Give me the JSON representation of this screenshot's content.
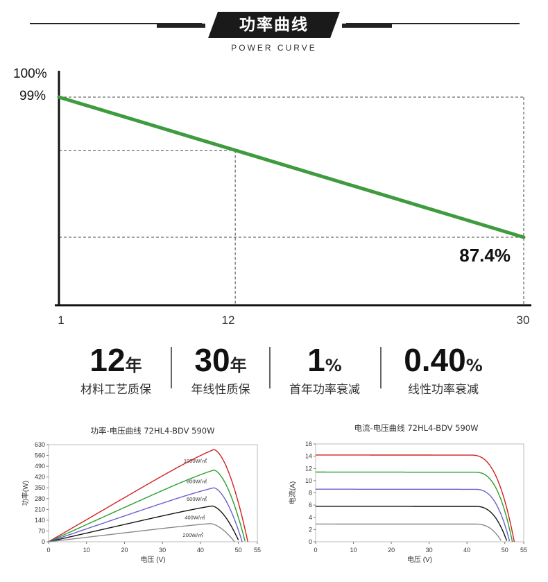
{
  "header": {
    "title": "功率曲线",
    "subtitle": "POWER CURVE"
  },
  "main_chart": {
    "chart_data": {
      "type": "line",
      "x": [
        1,
        30
      ],
      "y": [
        99,
        87.4
      ],
      "units": "%",
      "x_ticks": [
        "1",
        "12",
        "30"
      ],
      "y_labels": [
        "100%",
        "99%"
      ],
      "end_label": "87.4%",
      "reference_x": 12,
      "line_color": "#3e9b3e"
    }
  },
  "stats": [
    {
      "value": "12",
      "unit": "年",
      "label": "材料工艺质保"
    },
    {
      "value": "30",
      "unit": "年",
      "label": "年线性质保"
    },
    {
      "value": "1",
      "unit": "%",
      "label": "首年功率衰减"
    },
    {
      "value": "0.40",
      "unit": "%",
      "label": "线性功率衰减"
    }
  ],
  "chart_data": [
    {
      "type": "line",
      "title": "功率-电压曲线 72HL4-BDV 590W",
      "xlabel": "电压 (V)",
      "ylabel": "功率(W)",
      "xlim": [
        0,
        55
      ],
      "ylim": [
        0,
        630
      ],
      "x_ticks": [
        0,
        10,
        20,
        30,
        40,
        50,
        55
      ],
      "y_ticks": [
        0,
        70,
        140,
        210,
        280,
        350,
        420,
        490,
        560,
        630
      ],
      "series": [
        {
          "name": "1000W/㎡",
          "color": "#d02020",
          "vmp": 43.5,
          "pmax": 598,
          "voc": 52.5
        },
        {
          "name": "800W/㎡",
          "color": "#2aa02a",
          "vmp": 43.5,
          "pmax": 465,
          "voc": 51.8
        },
        {
          "name": "600W/㎡",
          "color": "#6a5fd0",
          "vmp": 43.5,
          "pmax": 350,
          "voc": 51.0
        },
        {
          "name": "400W/㎡",
          "color": "#111111",
          "vmp": 43.0,
          "pmax": 232,
          "voc": 50.2
        },
        {
          "name": "200W/㎡",
          "color": "#888888",
          "vmp": 42.5,
          "pmax": 118,
          "voc": 49.0
        }
      ]
    },
    {
      "type": "line",
      "title": "电流-电压曲线 72HL4-BDV 590W",
      "xlabel": "电压 (V)",
      "ylabel": "电流(A)",
      "xlim": [
        0,
        55
      ],
      "ylim": [
        0,
        16
      ],
      "x_ticks": [
        0,
        10,
        20,
        30,
        40,
        50,
        55
      ],
      "y_ticks": [
        0,
        2,
        4,
        6,
        8,
        10,
        12,
        14,
        16
      ],
      "series": [
        {
          "name": "1000W/㎡",
          "color": "#d02020",
          "isc": 14.2,
          "knee": 41,
          "voc": 52.5
        },
        {
          "name": "800W/㎡",
          "color": "#2aa02a",
          "isc": 11.4,
          "knee": 42,
          "voc": 52.0
        },
        {
          "name": "600W/㎡",
          "color": "#6a5fd0",
          "isc": 8.6,
          "knee": 42,
          "voc": 51.3
        },
        {
          "name": "400W/㎡",
          "color": "#111111",
          "isc": 5.8,
          "knee": 42,
          "voc": 50.6
        },
        {
          "name": "200W/㎡",
          "color": "#888888",
          "isc": 2.9,
          "knee": 42,
          "voc": 49.2
        }
      ]
    }
  ]
}
